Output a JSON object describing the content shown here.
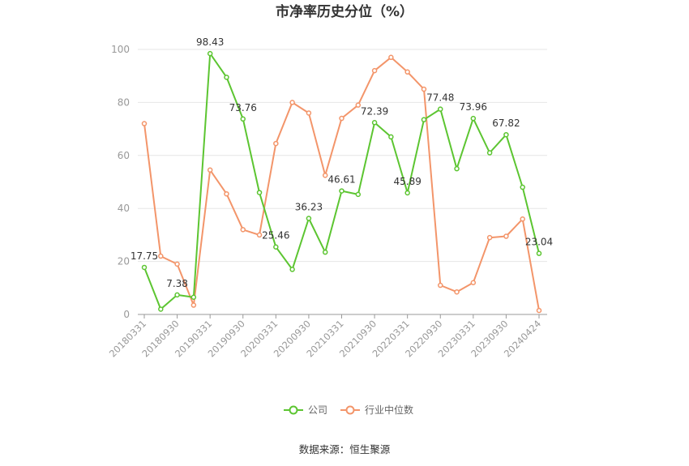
{
  "chart_data": {
    "type": "line",
    "title": "市净率历史分位（%）",
    "xlabel": "",
    "ylabel": "",
    "ylim": [
      0,
      100
    ],
    "yticks": [
      0,
      20,
      40,
      60,
      80,
      100
    ],
    "grid": "horizontal",
    "legend_position": "bottom",
    "x": [
      "20180331",
      "20180630",
      "20180930",
      "20181231",
      "20190331",
      "20190630",
      "20190930",
      "20191231",
      "20200331",
      "20200630",
      "20200930",
      "20201231",
      "20210331",
      "20210630",
      "20210930",
      "20211231",
      "20220331",
      "20220630",
      "20220930",
      "20221231",
      "20230331",
      "20230630",
      "20230930",
      "20231231",
      "20240424"
    ],
    "x_tick_labels": [
      "20180331",
      "20180930",
      "20190331",
      "20190930",
      "20200331",
      "20200930",
      "20210331",
      "20210930",
      "20220331",
      "20220930",
      "20230331",
      "20230930",
      "20240424"
    ],
    "series": [
      {
        "name": "公司",
        "color": "#5cc531",
        "values": [
          17.75,
          2,
          7.38,
          6.5,
          98.43,
          89.5,
          73.76,
          46,
          25.46,
          17,
          36.23,
          23.5,
          46.61,
          45.3,
          72.39,
          67,
          45.89,
          73.5,
          77.48,
          55,
          73.96,
          61,
          67.82,
          48,
          23.04
        ],
        "labels": [
          "17.75",
          null,
          "7.38",
          null,
          "98.43",
          null,
          "73.76",
          null,
          "25.46",
          null,
          "36.23",
          null,
          "46.61",
          null,
          "72.39",
          null,
          "45.89",
          null,
          "77.48",
          null,
          "73.96",
          null,
          "67.82",
          null,
          "23.04"
        ]
      },
      {
        "name": "行业中位数",
        "color": "#f3956a",
        "values": [
          72,
          22,
          19,
          3.5,
          54.5,
          45.5,
          32,
          30,
          64.5,
          80,
          76,
          52.5,
          74,
          79,
          92,
          97,
          91.5,
          85,
          11,
          8.5,
          12,
          29,
          29.5,
          36,
          1.5
        ]
      }
    ]
  },
  "source": "数据来源：恒生聚源"
}
